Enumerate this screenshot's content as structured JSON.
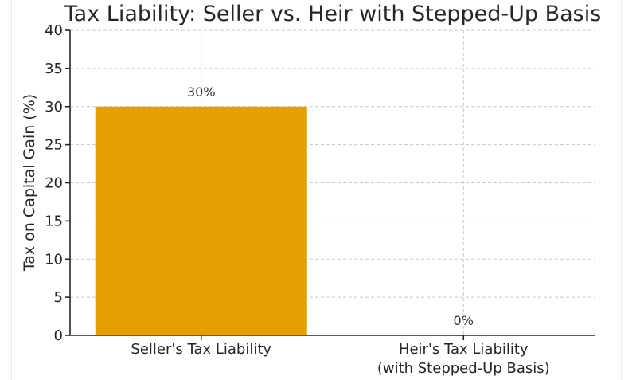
{
  "chart_data": {
    "type": "bar",
    "title": "Tax Liability: Seller vs. Heir with Stepped-Up Basis",
    "xlabel": "",
    "ylabel": "Tax on Capital Gain (%)",
    "categories": [
      [
        "Seller's Tax Liability"
      ],
      [
        "Heir's Tax Liability",
        "(with Stepped-Up Basis)"
      ]
    ],
    "values": [
      30,
      0
    ],
    "data_labels": [
      "30%",
      "0%"
    ],
    "ylim": [
      0,
      40
    ],
    "yticks": [
      0,
      5,
      10,
      15,
      20,
      25,
      30,
      35,
      40
    ],
    "grid": true,
    "colors": {
      "bar": "#e69f00",
      "axis": "#262626",
      "grid": "#c8c8c8"
    }
  }
}
